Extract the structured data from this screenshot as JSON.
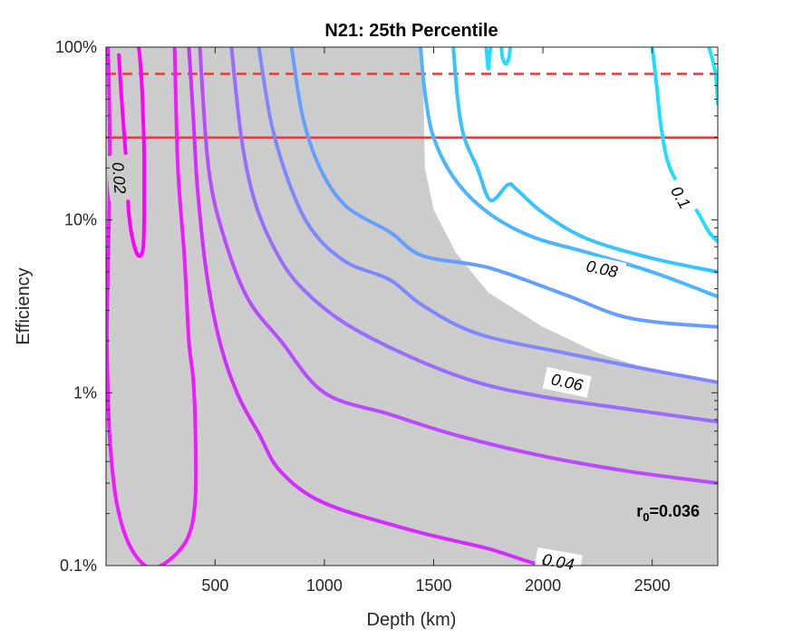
{
  "chart_data": {
    "type": "contour",
    "title": "N21: 25th Percentile",
    "xlabel": "Depth (km)",
    "ylabel": "Efficiency",
    "xlim": [
      1,
      2800
    ],
    "ylim": [
      0.001,
      1
    ],
    "yscale": "log",
    "xticks": [
      500,
      1000,
      1500,
      2000,
      2500
    ],
    "xtick_labels": [
      "500",
      "1000",
      "1500",
      "2000",
      "2500"
    ],
    "yticks": [
      0.001,
      0.01,
      0.1,
      1
    ],
    "ytick_labels": [
      "0.1%",
      "1%",
      "10%",
      "100%"
    ],
    "annotation": {
      "prefix": "r",
      "subscript": "0",
      "suffix": "=0.036"
    },
    "contour_label_values": [
      "0.02",
      "0.04",
      "0.06",
      "0.08",
      "0.1"
    ],
    "shaded_region": {
      "color": "#cccccc",
      "boundary": [
        [
          1,
          1
        ],
        [
          1450,
          1
        ],
        [
          1460,
          0.2
        ],
        [
          1500,
          0.115
        ],
        [
          1600,
          0.065
        ],
        [
          1750,
          0.038
        ],
        [
          2000,
          0.024
        ],
        [
          2250,
          0.017
        ],
        [
          2500,
          0.0135
        ],
        [
          2800,
          0.0115
        ],
        [
          2800,
          0.001
        ],
        [
          1,
          0.001
        ]
      ]
    },
    "reference_lines": [
      {
        "efficiency": 0.7,
        "style": "dashed",
        "color": "#e83a3a"
      },
      {
        "efficiency": 0.3,
        "style": "solid",
        "color": "#e83a3a"
      }
    ],
    "contours": [
      {
        "level": "0.02",
        "color": "#ff00ff",
        "points": [
          [
            60,
            0.9
          ],
          [
            70,
            0.55
          ],
          [
            85,
            0.3
          ],
          [
            95,
            0.2
          ],
          [
            105,
            0.11
          ],
          [
            125,
            0.075
          ],
          [
            150,
            0.062
          ],
          [
            170,
            0.068
          ],
          [
            175,
            0.1
          ],
          [
            175,
            0.25
          ],
          [
            170,
            0.4
          ],
          [
            165,
            0.6
          ],
          [
            155,
            0.9
          ],
          [
            150,
            1
          ]
        ]
      },
      {
        "level": "0.02",
        "color": "#f019ff",
        "points": [
          [
            10,
            1
          ],
          [
            15,
            0.55
          ],
          [
            18,
            0.25
          ],
          [
            15,
            0.11
          ],
          [
            8,
            0.04
          ],
          [
            5,
            0.02
          ],
          [
            10,
            0.01
          ],
          [
            20,
            0.005
          ],
          [
            50,
            0.0023
          ],
          [
            110,
            0.0013
          ],
          [
            200,
            0.00097
          ],
          [
            300,
            0.0011
          ],
          [
            380,
            0.0015
          ],
          [
            410,
            0.0025
          ],
          [
            410,
            0.006
          ],
          [
            400,
            0.012
          ],
          [
            380,
            0.02
          ],
          [
            360,
            0.06
          ],
          [
            330,
            0.2
          ],
          [
            315,
            1
          ]
        ]
      },
      {
        "level": "0.04",
        "color": "#d22dff",
        "points": [
          [
            380,
            1
          ],
          [
            400,
            0.4
          ],
          [
            420,
            0.15
          ],
          [
            460,
            0.05
          ],
          [
            520,
            0.02
          ],
          [
            600,
            0.01
          ],
          [
            700,
            0.0058
          ],
          [
            800,
            0.0035
          ],
          [
            1000,
            0.0023
          ],
          [
            1400,
            0.0016
          ],
          [
            1700,
            0.0013
          ],
          [
            1800,
            0.0012
          ],
          [
            2000,
            0.001
          ],
          [
            2300,
            0.00085
          ],
          [
            2500,
            0.00078
          ],
          [
            2800,
            0.00066
          ]
        ]
      },
      {
        "level": "0.04",
        "color": "#b84bff",
        "points": [
          [
            430,
            1
          ],
          [
            470,
            0.2
          ],
          [
            540,
            0.08
          ],
          [
            650,
            0.035
          ],
          [
            800,
            0.02
          ],
          [
            1000,
            0.01
          ],
          [
            1300,
            0.0075
          ],
          [
            1600,
            0.0057
          ],
          [
            2000,
            0.0043
          ],
          [
            2400,
            0.0035
          ],
          [
            2800,
            0.003
          ]
        ]
      },
      {
        "level": "0.06",
        "color": "#9a6bff",
        "points": [
          [
            575,
            1
          ],
          [
            620,
            0.3
          ],
          [
            680,
            0.13
          ],
          [
            780,
            0.065
          ],
          [
            900,
            0.04
          ],
          [
            1100,
            0.025
          ],
          [
            1400,
            0.016
          ],
          [
            1700,
            0.0115
          ],
          [
            2000,
            0.0095
          ],
          [
            2400,
            0.008
          ],
          [
            2800,
            0.0068
          ]
        ]
      },
      {
        "level": "0.06",
        "color": "#7f87ff",
        "points": [
          [
            700,
            1
          ],
          [
            760,
            0.35
          ],
          [
            850,
            0.15
          ],
          [
            950,
            0.085
          ],
          [
            1100,
            0.057
          ],
          [
            1300,
            0.045
          ],
          [
            1450,
            0.032
          ],
          [
            1700,
            0.022
          ],
          [
            2100,
            0.017
          ],
          [
            2500,
            0.0135
          ],
          [
            2800,
            0.0115
          ]
        ]
      },
      {
        "level": "0.08",
        "color": "#649fff",
        "points": [
          [
            850,
            1
          ],
          [
            900,
            0.4
          ],
          [
            980,
            0.2
          ],
          [
            1100,
            0.12
          ],
          [
            1300,
            0.085
          ],
          [
            1450,
            0.062
          ],
          [
            1750,
            0.053
          ],
          [
            2100,
            0.037
          ],
          [
            2400,
            0.027
          ],
          [
            2800,
            0.024
          ]
        ]
      },
      {
        "level": "0.08",
        "color": "#49b6ff",
        "points": [
          [
            1440,
            1
          ],
          [
            1460,
            0.55
          ],
          [
            1500,
            0.3
          ],
          [
            1600,
            0.17
          ],
          [
            1750,
            0.11
          ],
          [
            1950,
            0.08
          ],
          [
            2200,
            0.065
          ],
          [
            2500,
            0.05
          ],
          [
            2800,
            0.036
          ]
        ]
      },
      {
        "level": "0.1",
        "color": "#36c4ff",
        "points": [
          [
            1590,
            1
          ],
          [
            1610,
            0.5
          ],
          [
            1640,
            0.3
          ],
          [
            1700,
            0.2
          ],
          [
            1760,
            0.13
          ],
          [
            1840,
            0.16
          ],
          [
            1880,
            0.15
          ],
          [
            2000,
            0.11
          ],
          [
            2200,
            0.078
          ],
          [
            2500,
            0.06
          ],
          [
            2800,
            0.05
          ]
        ]
      },
      {
        "level": "0.1",
        "color": "#20dcff",
        "points": [
          [
            2500,
            1
          ],
          [
            2520,
            0.6
          ],
          [
            2540,
            0.35
          ],
          [
            2570,
            0.22
          ],
          [
            2620,
            0.16
          ],
          [
            2700,
            0.115
          ],
          [
            2760,
            0.085
          ],
          [
            2800,
            0.075
          ]
        ]
      },
      {
        "level": "0.1",
        "color": "#12e8ff",
        "points": [
          [
            2760,
            1
          ],
          [
            2790,
            0.7
          ],
          [
            2800,
            0.47
          ]
        ]
      },
      {
        "level": "0.1",
        "color": "#20dcff",
        "points": [
          [
            1760,
            1
          ],
          [
            1755,
            0.86
          ],
          [
            1750,
            0.75
          ],
          [
            1745,
            0.86
          ],
          [
            1740,
            1
          ]
        ]
      },
      {
        "level": "0.1",
        "color": "#20dcff",
        "points": [
          [
            1850,
            1
          ],
          [
            1845,
            0.87
          ],
          [
            1830,
            0.8
          ],
          [
            1815,
            0.87
          ],
          [
            1810,
            1
          ]
        ]
      }
    ],
    "contour_labels": [
      {
        "text": "0.02",
        "x": 60,
        "y": 0.175,
        "angle": 85
      },
      {
        "text": "0.04",
        "x": 2070,
        "y": 0.00105,
        "angle": 10
      },
      {
        "text": "0.06",
        "x": 2110,
        "y": 0.0115,
        "angle": 12
      },
      {
        "text": "0.08",
        "x": 2270,
        "y": 0.052,
        "angle": 12
      },
      {
        "text": "0.1",
        "x": 2630,
        "y": 0.135,
        "angle": 60
      }
    ]
  }
}
